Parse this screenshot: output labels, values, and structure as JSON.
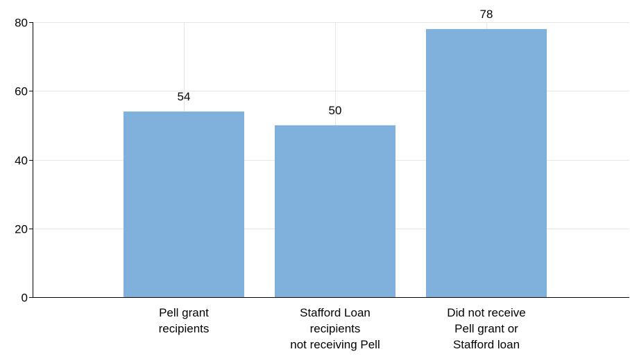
{
  "chart_data": {
    "type": "bar",
    "categories": [
      "Pell grant\nrecipients",
      "Stafford Loan\nrecipients\nnot receiving Pell",
      "Did not receive\nPell grant or\nStafford loan"
    ],
    "values": [
      54,
      50,
      78
    ],
    "data_labels": [
      "54",
      "50",
      "78"
    ],
    "ylim": [
      0,
      80
    ],
    "yticks": [
      0,
      20,
      40,
      60,
      80
    ],
    "title": "",
    "xlabel": "",
    "ylabel": "",
    "grid": true,
    "legend": "none",
    "bar_color": "#80b0dc"
  }
}
